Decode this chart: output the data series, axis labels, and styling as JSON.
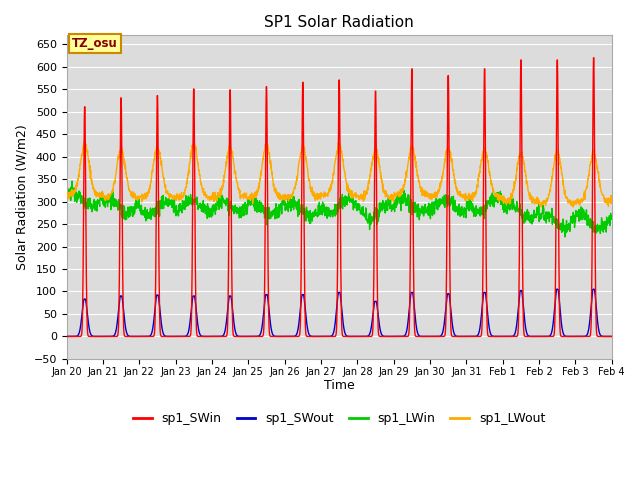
{
  "title": "SP1 Solar Radiation",
  "xlabel": "Time",
  "ylabel": "Solar Radiation (W/m2)",
  "ylim": [
    -50,
    670
  ],
  "yticks": [
    -50,
    0,
    50,
    100,
    150,
    200,
    250,
    300,
    350,
    400,
    450,
    500,
    550,
    600,
    650
  ],
  "bg_color": "#dcdcdc",
  "fig_color": "#ffffff",
  "colors": {
    "sp1_SWin": "#ff0000",
    "sp1_SWout": "#0000cc",
    "sp1_LWin": "#00cc00",
    "sp1_LWout": "#ffaa00"
  },
  "annotation_text": "TZ_osu",
  "annotation_bg": "#ffff99",
  "annotation_border": "#cc8800",
  "n_days": 15,
  "sw_peaks": [
    515,
    535,
    540,
    555,
    553,
    560,
    570,
    575,
    550,
    600,
    585,
    600,
    620,
    620,
    625
  ],
  "sw_out_peaks": [
    83,
    90,
    92,
    90,
    90,
    93,
    93,
    98,
    78,
    98,
    95,
    98,
    102,
    105,
    105
  ],
  "lw_in_base": [
    305,
    290,
    285,
    290,
    288,
    285,
    282,
    290,
    278,
    292,
    290,
    292,
    278,
    258,
    256
  ],
  "lw_out_night": [
    315,
    310,
    310,
    310,
    310,
    310,
    310,
    315,
    310,
    315,
    313,
    310,
    300,
    296,
    300
  ],
  "lw_out_day_peak": [
    428,
    416,
    420,
    428,
    420,
    425,
    420,
    425,
    415,
    420,
    418,
    415,
    408,
    410,
    410
  ],
  "grid_color": "#ffffff",
  "line_width": 1.0
}
